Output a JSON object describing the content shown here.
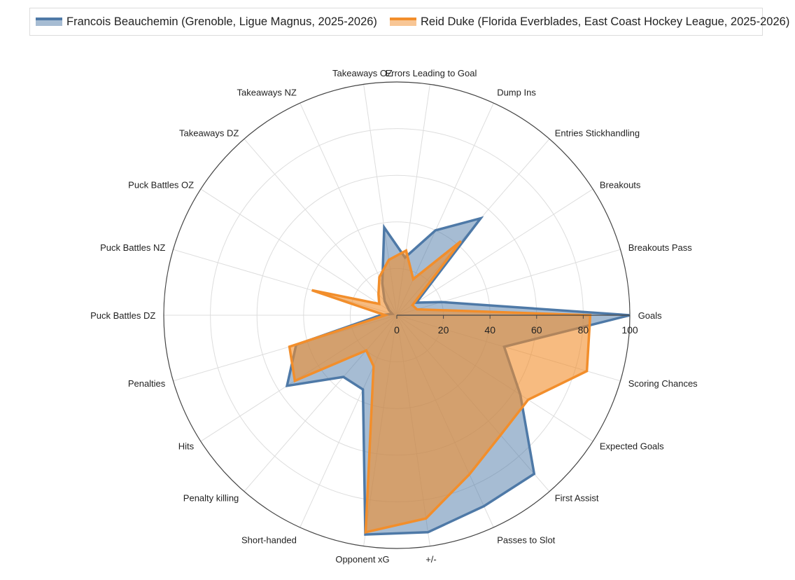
{
  "chart_data": {
    "type": "radar",
    "title": "",
    "categories": [
      "Goals",
      "Breakouts Pass",
      "Breakouts",
      "Entries Stickhandling",
      "Dump Ins",
      "Errors Leading to Goal",
      "Takeaways OZ",
      "Takeaways NZ",
      "Takeaways DZ",
      "Puck Battles OZ",
      "Puck Battles NZ",
      "Puck Battles DZ",
      "Penalties",
      "Hits",
      "Penalty killing",
      "Short-handed",
      "Opponent xG",
      "+/-",
      "Passes to Slot",
      "First Assist",
      "Expected Goals",
      "Scoring Chances"
    ],
    "radial_ticks": [
      0,
      20,
      40,
      60,
      80,
      100
    ],
    "range": [
      0,
      100
    ],
    "legend_position": "top",
    "series": [
      {
        "name": "Francois Beauchemin (Grenoble, Ligue Magnus, 2025-2026)",
        "color": "#4e79a7",
        "values": [
          100,
          20,
          10,
          55,
          40,
          25,
          38,
          15,
          8,
          4,
          2,
          7,
          45,
          56,
          35,
          35,
          95,
          94,
          90,
          90,
          63,
          48
        ]
      },
      {
        "name": "Reid Duke (Florida Everblades, East Coast Hockey League, 2025-2026)",
        "color": "#f28e2b",
        "values": [
          83,
          9,
          8,
          42,
          17,
          28,
          24,
          18,
          12,
          9,
          38,
          5,
          48,
          52,
          20,
          24,
          94,
          88,
          75,
          68,
          67,
          85
        ]
      }
    ]
  }
}
